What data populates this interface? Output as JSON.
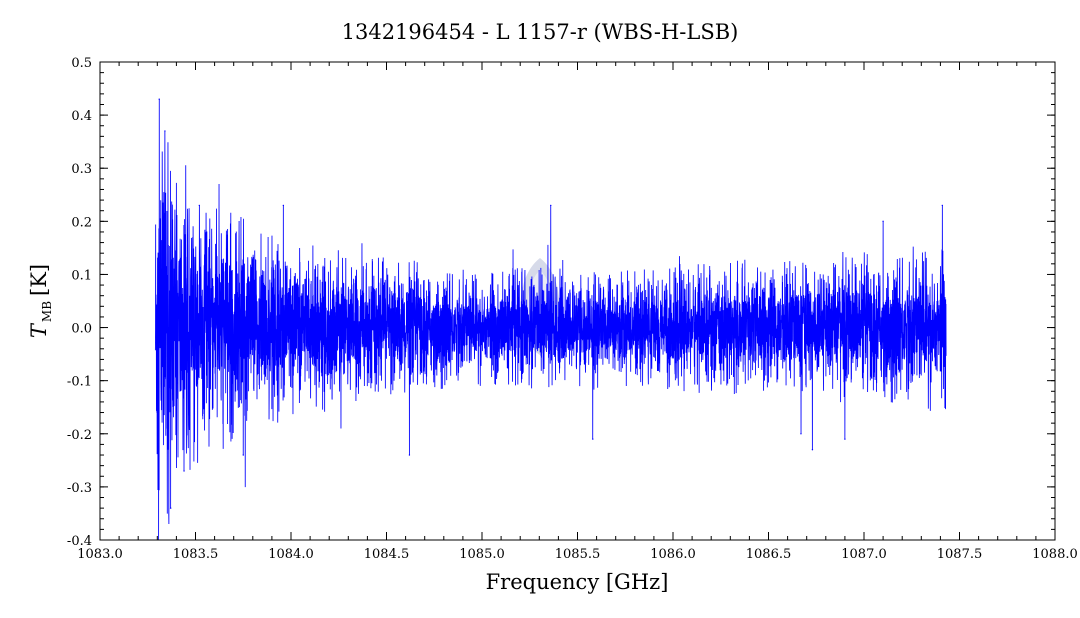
{
  "chart_data": {
    "type": "line",
    "title": "1342196454 - L 1157-r (WBS-H-LSB)",
    "xlabel": "Frequency [GHz]",
    "ylabel": {
      "symbol": "T",
      "subscript": "MB",
      "unit": "[K]"
    },
    "xlim": [
      1083.0,
      1088.0
    ],
    "ylim": [
      -0.4,
      0.5
    ],
    "x_ticks": [
      1083.0,
      1083.5,
      1084.0,
      1084.5,
      1085.0,
      1085.5,
      1086.0,
      1086.5,
      1087.0,
      1087.5,
      1088.0
    ],
    "x_tick_labels": [
      "1083.0",
      "1083.5",
      "1084.0",
      "1084.5",
      "1085.0",
      "1085.5",
      "1086.0",
      "1086.5",
      "1087.0",
      "1087.5",
      "1088.0"
    ],
    "y_ticks": [
      -0.4,
      -0.3,
      -0.2,
      -0.1,
      0.0,
      0.1,
      0.2,
      0.3,
      0.4,
      0.5
    ],
    "y_tick_labels": [
      "-0.4",
      "-0.3",
      "-0.2",
      "-0.1",
      "0.0",
      "0.1",
      "0.2",
      "0.3",
      "0.4",
      "0.5"
    ],
    "grid": false,
    "series": [
      {
        "color": "#0000ff",
        "x_range": [
          1083.29,
          1087.43
        ],
        "envelope": {
          "x": [
            1083.29,
            1083.31,
            1083.33,
            1083.35,
            1083.38,
            1083.42,
            1083.46,
            1083.5,
            1083.55,
            1083.6,
            1083.65,
            1083.7,
            1083.75,
            1083.8,
            1083.9,
            1084.0,
            1084.1,
            1084.3,
            1084.5,
            1084.7,
            1084.9,
            1085.1,
            1085.2,
            1085.3,
            1085.35,
            1085.4,
            1085.5,
            1085.7,
            1085.9,
            1086.1,
            1086.3,
            1086.5,
            1086.7,
            1086.9,
            1087.1,
            1087.3,
            1087.43
          ],
          "amplitude": [
            0.25,
            0.3,
            0.26,
            0.24,
            0.22,
            0.2,
            0.18,
            0.16,
            0.16,
            0.15,
            0.15,
            0.15,
            0.14,
            0.12,
            0.11,
            0.11,
            0.1,
            0.09,
            0.08,
            0.08,
            0.07,
            0.07,
            0.07,
            0.07,
            0.08,
            0.07,
            0.07,
            0.07,
            0.07,
            0.08,
            0.08,
            0.08,
            0.08,
            0.09,
            0.09,
            0.1,
            0.1
          ]
        },
        "peaks": [
          {
            "x": 1083.31,
            "y": 0.43
          },
          {
            "x": 1083.34,
            "y": 0.37
          },
          {
            "x": 1083.37,
            "y": -0.34
          },
          {
            "x": 1083.44,
            "y": -0.27
          },
          {
            "x": 1083.52,
            "y": 0.23
          },
          {
            "x": 1083.75,
            "y": -0.24
          },
          {
            "x": 1083.96,
            "y": 0.23
          },
          {
            "x": 1084.62,
            "y": -0.24
          },
          {
            "x": 1085.36,
            "y": 0.23
          },
          {
            "x": 1085.58,
            "y": -0.21
          },
          {
            "x": 1086.67,
            "y": -0.2
          },
          {
            "x": 1086.73,
            "y": -0.23
          },
          {
            "x": 1086.9,
            "y": -0.21
          },
          {
            "x": 1087.1,
            "y": 0.2
          },
          {
            "x": 1087.41,
            "y": 0.23
          }
        ],
        "spike_probability": 0.05,
        "spike_scale": 0.6,
        "sample_step": 0.0007
      }
    ]
  }
}
